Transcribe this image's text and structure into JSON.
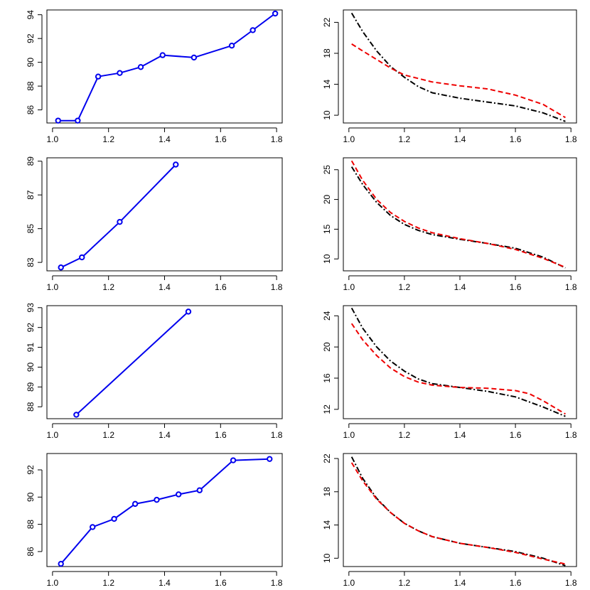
{
  "chart_data": [
    {
      "type": "line",
      "panel": "row1-left",
      "xlim": [
        0.98,
        1.82
      ],
      "ylim": [
        84.9,
        94.4
      ],
      "xticks": [
        1.0,
        1.2,
        1.4,
        1.6,
        1.8
      ],
      "xtick_labels": [
        "1.0",
        "1.2",
        "1.4",
        "1.6",
        "1.8"
      ],
      "yticks": [
        86,
        88,
        90,
        92,
        94
      ],
      "ytick_labels": [
        "86",
        "88",
        "90",
        "92",
        "94"
      ],
      "series": [
        {
          "style": "line-points",
          "color": "#0000ee",
          "x": [
            1.02,
            1.09,
            1.163,
            1.24,
            1.315,
            1.393,
            1.505,
            1.64,
            1.715,
            1.795
          ],
          "y": [
            85.1,
            85.1,
            88.8,
            89.1,
            89.6,
            90.6,
            90.4,
            91.4,
            92.7,
            94.1
          ]
        }
      ]
    },
    {
      "type": "line",
      "panel": "row1-right",
      "xlim": [
        0.98,
        1.82
      ],
      "ylim": [
        9.0,
        23.6
      ],
      "xticks": [
        1.0,
        1.2,
        1.4,
        1.6,
        1.8
      ],
      "xtick_labels": [
        "1.0",
        "1.2",
        "1.4",
        "1.6",
        "1.8"
      ],
      "yticks": [
        10,
        14,
        18,
        22
      ],
      "ytick_labels": [
        "10",
        "14",
        "18",
        "22"
      ],
      "series": [
        {
          "style": "dashdot",
          "color": "#000000",
          "x": [
            1.01,
            1.05,
            1.1,
            1.15,
            1.2,
            1.25,
            1.3,
            1.4,
            1.5,
            1.6,
            1.7,
            1.78
          ],
          "y": [
            23.2,
            20.8,
            18.3,
            16.3,
            14.9,
            13.7,
            12.9,
            12.2,
            11.7,
            11.2,
            10.3,
            9.2
          ]
        },
        {
          "style": "dashed",
          "color": "#ee0000",
          "x": [
            1.01,
            1.05,
            1.1,
            1.15,
            1.2,
            1.3,
            1.4,
            1.5,
            1.6,
            1.7,
            1.78
          ],
          "y": [
            19.2,
            18.3,
            17.2,
            16.1,
            15.2,
            14.3,
            13.8,
            13.4,
            12.6,
            11.4,
            9.7
          ]
        }
      ]
    },
    {
      "type": "line",
      "panel": "row2-left",
      "xlim": [
        0.98,
        1.82
      ],
      "ylim": [
        82.5,
        89.2
      ],
      "xticks": [
        1.0,
        1.2,
        1.4,
        1.6,
        1.8
      ],
      "xtick_labels": [
        "1.0",
        "1.2",
        "1.4",
        "1.6",
        "1.8"
      ],
      "yticks": [
        83,
        85,
        87,
        89
      ],
      "ytick_labels": [
        "83",
        "85",
        "87",
        "89"
      ],
      "series": [
        {
          "style": "line-points",
          "color": "#0000ee",
          "x": [
            1.03,
            1.105,
            1.24,
            1.44
          ],
          "y": [
            82.7,
            83.3,
            85.4,
            88.8
          ]
        }
      ]
    },
    {
      "type": "line",
      "panel": "row2-right",
      "xlim": [
        0.98,
        1.82
      ],
      "ylim": [
        8.0,
        27.0
      ],
      "xticks": [
        1.0,
        1.2,
        1.4,
        1.6,
        1.8
      ],
      "xtick_labels": [
        "1.0",
        "1.2",
        "1.4",
        "1.6",
        "1.8"
      ],
      "yticks": [
        10,
        15,
        20,
        25
      ],
      "ytick_labels": [
        "10",
        "15",
        "20",
        "25"
      ],
      "series": [
        {
          "style": "dashdot",
          "color": "#000000",
          "x": [
            1.01,
            1.05,
            1.1,
            1.15,
            1.2,
            1.25,
            1.3,
            1.4,
            1.5,
            1.6,
            1.7,
            1.78
          ],
          "y": [
            25.5,
            22.5,
            19.5,
            17.3,
            15.8,
            14.8,
            14.1,
            13.3,
            12.6,
            11.8,
            10.3,
            8.5
          ]
        },
        {
          "style": "dashed",
          "color": "#ee0000",
          "x": [
            1.01,
            1.05,
            1.1,
            1.15,
            1.2,
            1.25,
            1.3,
            1.4,
            1.5,
            1.6,
            1.7,
            1.78
          ],
          "y": [
            26.5,
            23.2,
            20.0,
            17.8,
            16.3,
            15.2,
            14.4,
            13.4,
            12.6,
            11.6,
            10.1,
            8.6
          ]
        }
      ]
    },
    {
      "type": "line",
      "panel": "row3-left",
      "xlim": [
        0.98,
        1.82
      ],
      "ylim": [
        87.4,
        93.1
      ],
      "xticks": [
        1.0,
        1.2,
        1.4,
        1.6,
        1.8
      ],
      "xtick_labels": [
        "1.0",
        "1.2",
        "1.4",
        "1.6",
        "1.8"
      ],
      "yticks": [
        88,
        89,
        90,
        91,
        92,
        93
      ],
      "ytick_labels": [
        "88",
        "89",
        "90",
        "91",
        "92",
        "93"
      ],
      "series": [
        {
          "style": "line-points",
          "color": "#0000ee",
          "x": [
            1.085,
            1.485
          ],
          "y": [
            87.6,
            92.8
          ]
        }
      ]
    },
    {
      "type": "line",
      "panel": "row3-right",
      "xlim": [
        0.98,
        1.82
      ],
      "ylim": [
        10.8,
        25.3
      ],
      "xticks": [
        1.0,
        1.2,
        1.4,
        1.6,
        1.8
      ],
      "xtick_labels": [
        "1.0",
        "1.2",
        "1.4",
        "1.6",
        "1.8"
      ],
      "yticks": [
        12,
        16,
        20,
        24
      ],
      "ytick_labels": [
        "12",
        "16",
        "20",
        "24"
      ],
      "series": [
        {
          "style": "dashdot",
          "color": "#000000",
          "x": [
            1.01,
            1.05,
            1.1,
            1.15,
            1.2,
            1.25,
            1.3,
            1.4,
            1.5,
            1.6,
            1.7,
            1.78
          ],
          "y": [
            25.0,
            22.4,
            20.0,
            18.2,
            16.9,
            15.9,
            15.3,
            14.8,
            14.3,
            13.6,
            12.3,
            11.1
          ]
        },
        {
          "style": "dashed",
          "color": "#ee0000",
          "x": [
            1.01,
            1.05,
            1.1,
            1.15,
            1.2,
            1.25,
            1.3,
            1.4,
            1.5,
            1.6,
            1.65,
            1.7,
            1.78
          ],
          "y": [
            23.0,
            20.9,
            18.9,
            17.3,
            16.2,
            15.5,
            15.1,
            14.8,
            14.7,
            14.4,
            14.0,
            13.1,
            11.4
          ]
        }
      ]
    },
    {
      "type": "line",
      "panel": "row4-left",
      "xlim": [
        0.98,
        1.82
      ],
      "ylim": [
        84.9,
        93.2
      ],
      "xticks": [
        1.0,
        1.2,
        1.4,
        1.6,
        1.8
      ],
      "xtick_labels": [
        "1.0",
        "1.2",
        "1.4",
        "1.6",
        "1.8"
      ],
      "yticks": [
        86,
        88,
        90,
        92
      ],
      "ytick_labels": [
        "86",
        "88",
        "90",
        "92"
      ],
      "series": [
        {
          "style": "line-points",
          "color": "#0000ee",
          "x": [
            1.03,
            1.143,
            1.22,
            1.295,
            1.372,
            1.45,
            1.525,
            1.645,
            1.775
          ],
          "y": [
            85.1,
            87.8,
            88.4,
            89.5,
            89.8,
            90.2,
            90.5,
            92.7,
            92.8
          ]
        }
      ]
    },
    {
      "type": "line",
      "panel": "row4-right",
      "xlim": [
        0.98,
        1.82
      ],
      "ylim": [
        9.0,
        22.6
      ],
      "xticks": [
        1.0,
        1.2,
        1.4,
        1.6,
        1.8
      ],
      "xtick_labels": [
        "1.0",
        "1.2",
        "1.4",
        "1.6",
        "1.8"
      ],
      "yticks": [
        10,
        14,
        18,
        22
      ],
      "ytick_labels": [
        "10",
        "14",
        "18",
        "22"
      ],
      "series": [
        {
          "style": "dashdot",
          "color": "#000000",
          "x": [
            1.01,
            1.05,
            1.1,
            1.15,
            1.2,
            1.25,
            1.3,
            1.4,
            1.5,
            1.6,
            1.7,
            1.78
          ],
          "y": [
            22.2,
            19.6,
            17.2,
            15.5,
            14.2,
            13.3,
            12.6,
            11.8,
            11.3,
            10.8,
            10.0,
            9.1
          ]
        },
        {
          "style": "dashed",
          "color": "#ee0000",
          "x": [
            1.01,
            1.05,
            1.1,
            1.15,
            1.2,
            1.25,
            1.3,
            1.4,
            1.5,
            1.6,
            1.7,
            1.78
          ],
          "y": [
            21.5,
            19.3,
            17.1,
            15.5,
            14.2,
            13.3,
            12.6,
            11.8,
            11.3,
            10.7,
            9.9,
            9.3
          ]
        }
      ]
    }
  ]
}
